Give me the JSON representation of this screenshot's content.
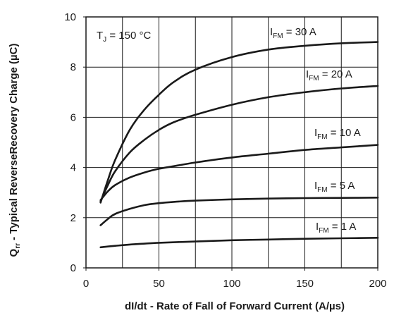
{
  "chart_data": {
    "type": "line",
    "xlabel": "dI/dt - Rate of Fall of Forward Current (A/µs)",
    "ylabel": {
      "symbol": "Q",
      "sub": "rr",
      "rest": " - Typical ReverseRecovery Charge (µC)"
    },
    "xlim": [
      0,
      200
    ],
    "ylim": [
      0,
      10
    ],
    "xticks": [
      0,
      50,
      100,
      150,
      200
    ],
    "yticks": [
      0,
      2,
      4,
      6,
      8,
      10
    ],
    "grid": true,
    "annotation": {
      "prefix": "T",
      "sub": "J",
      "suffix": " = 150 °C"
    },
    "series": [
      {
        "symbol": "I",
        "sub": "FM",
        "value_text": " = 30 A",
        "x": [
          10,
          15,
          20,
          30,
          40,
          50,
          60,
          75,
          100,
          125,
          150,
          175,
          200
        ],
        "y": [
          2.6,
          3.5,
          4.3,
          5.5,
          6.3,
          6.9,
          7.4,
          7.9,
          8.4,
          8.7,
          8.85,
          8.95,
          9.0
        ]
      },
      {
        "symbol": "I",
        "sub": "FM",
        "value_text": " = 20 A",
        "x": [
          10,
          15,
          20,
          30,
          40,
          50,
          60,
          75,
          100,
          125,
          150,
          175,
          200
        ],
        "y": [
          2.65,
          3.3,
          3.85,
          4.6,
          5.1,
          5.5,
          5.8,
          6.1,
          6.5,
          6.8,
          7.0,
          7.15,
          7.25
        ]
      },
      {
        "symbol": "I",
        "sub": "FM",
        "value_text": " = 10 A",
        "x": [
          10,
          15,
          20,
          30,
          40,
          50,
          60,
          75,
          100,
          125,
          150,
          175,
          200
        ],
        "y": [
          2.7,
          3.05,
          3.3,
          3.6,
          3.8,
          3.95,
          4.05,
          4.2,
          4.4,
          4.55,
          4.7,
          4.8,
          4.9
        ]
      },
      {
        "symbol": "I",
        "sub": "FM",
        "value_text": " = 5 A",
        "x": [
          10,
          15,
          20,
          30,
          40,
          50,
          60,
          75,
          100,
          125,
          150,
          175,
          200
        ],
        "y": [
          1.7,
          1.95,
          2.15,
          2.35,
          2.5,
          2.58,
          2.63,
          2.68,
          2.73,
          2.76,
          2.78,
          2.79,
          2.8
        ]
      },
      {
        "symbol": "I",
        "sub": "FM",
        "value_text": " = 1 A",
        "x": [
          10,
          20,
          30,
          50,
          75,
          100,
          125,
          150,
          175,
          200
        ],
        "y": [
          0.82,
          0.88,
          0.93,
          1.0,
          1.05,
          1.1,
          1.13,
          1.16,
          1.18,
          1.2
        ]
      }
    ]
  }
}
